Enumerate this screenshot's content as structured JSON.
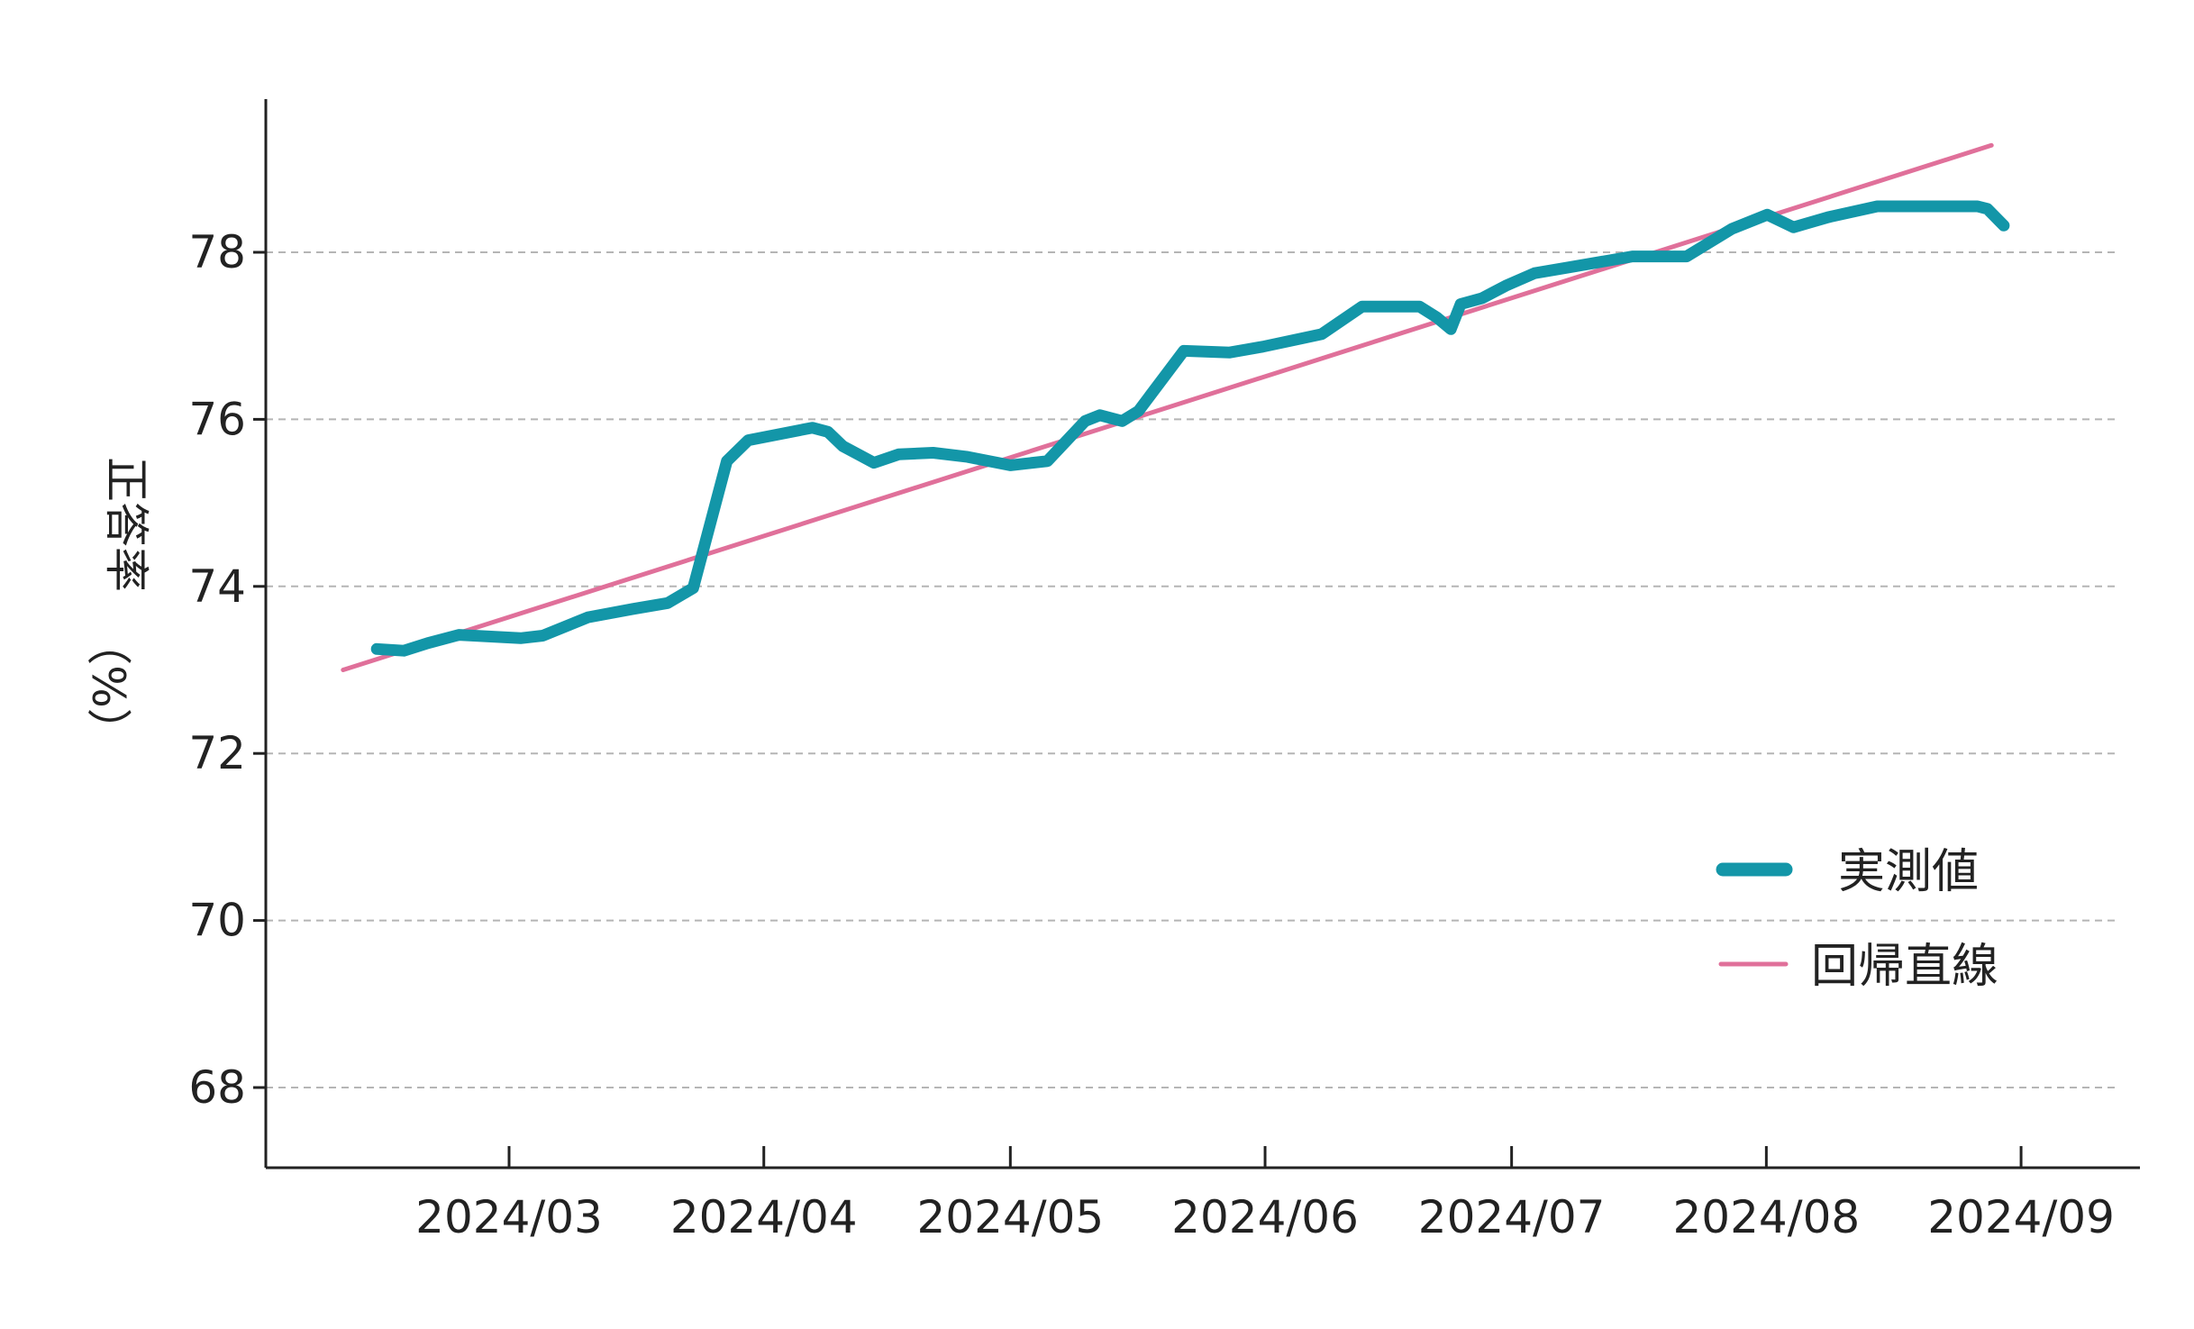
{
  "chart_data": {
    "type": "line",
    "title": "",
    "xlabel": "",
    "ylabel": "正答率（%）",
    "ylabel_parts": [
      "正答率",
      "（%）"
    ],
    "ylim": [
      67.0,
      80.0
    ],
    "yticks": [
      68,
      70,
      72,
      74,
      76,
      78
    ],
    "grid": "horizontal-dashed",
    "legend_position": "bottom-right",
    "x_range_days": [
      -19,
      195
    ],
    "xticks": [
      {
        "label": "2024/03",
        "day": 0
      },
      {
        "label": "2024/04",
        "day": 31
      },
      {
        "label": "2024/05",
        "day": 61
      },
      {
        "label": "2024/06",
        "day": 92
      },
      {
        "label": "2024/07",
        "day": 122
      },
      {
        "label": "2024/08",
        "day": 153
      },
      {
        "label": "2024/09",
        "day": 184
      }
    ],
    "series": [
      {
        "name": "実測値",
        "color": "#1396a8",
        "style": "thick",
        "points": [
          [
            -16.1,
            73.25
          ],
          [
            -12.8,
            73.23
          ],
          [
            -9.9,
            73.32
          ],
          [
            -6.1,
            73.42
          ],
          [
            1.4,
            73.38
          ],
          [
            4.1,
            73.41
          ],
          [
            9.6,
            73.63
          ],
          [
            15.1,
            73.73
          ],
          [
            19.3,
            73.8
          ],
          [
            22.4,
            73.98
          ],
          [
            26.5,
            75.5
          ],
          [
            29.1,
            75.75
          ],
          [
            36.9,
            75.9
          ],
          [
            38.8,
            75.85
          ],
          [
            40.6,
            75.68
          ],
          [
            44.4,
            75.48
          ],
          [
            47.4,
            75.58
          ],
          [
            51.6,
            75.6
          ],
          [
            55.8,
            75.55
          ],
          [
            61.0,
            75.45
          ],
          [
            65.5,
            75.5
          ],
          [
            70.1,
            75.98
          ],
          [
            71.9,
            76.05
          ],
          [
            74.6,
            75.98
          ],
          [
            76.6,
            76.1
          ],
          [
            82.1,
            76.82
          ],
          [
            87.7,
            76.8
          ],
          [
            91.7,
            76.87
          ],
          [
            98.9,
            77.02
          ],
          [
            103.8,
            77.35
          ],
          [
            110.8,
            77.35
          ],
          [
            112.9,
            77.22
          ],
          [
            114.6,
            77.08
          ],
          [
            115.8,
            77.38
          ],
          [
            118.4,
            77.45
          ],
          [
            121.3,
            77.6
          ],
          [
            124.8,
            77.75
          ],
          [
            129.0,
            77.82
          ],
          [
            136.7,
            77.95
          ],
          [
            143.3,
            77.95
          ],
          [
            148.8,
            78.28
          ],
          [
            153.1,
            78.45
          ],
          [
            156.3,
            78.3
          ],
          [
            160.5,
            78.42
          ],
          [
            166.5,
            78.55
          ],
          [
            178.7,
            78.55
          ],
          [
            179.9,
            78.52
          ],
          [
            181.9,
            78.32
          ]
        ]
      },
      {
        "name": "回帰直線",
        "color": "#e0709a",
        "style": "thin",
        "points": [
          [
            -20.2,
            73.0
          ],
          [
            180.4,
            79.28
          ]
        ]
      }
    ]
  }
}
